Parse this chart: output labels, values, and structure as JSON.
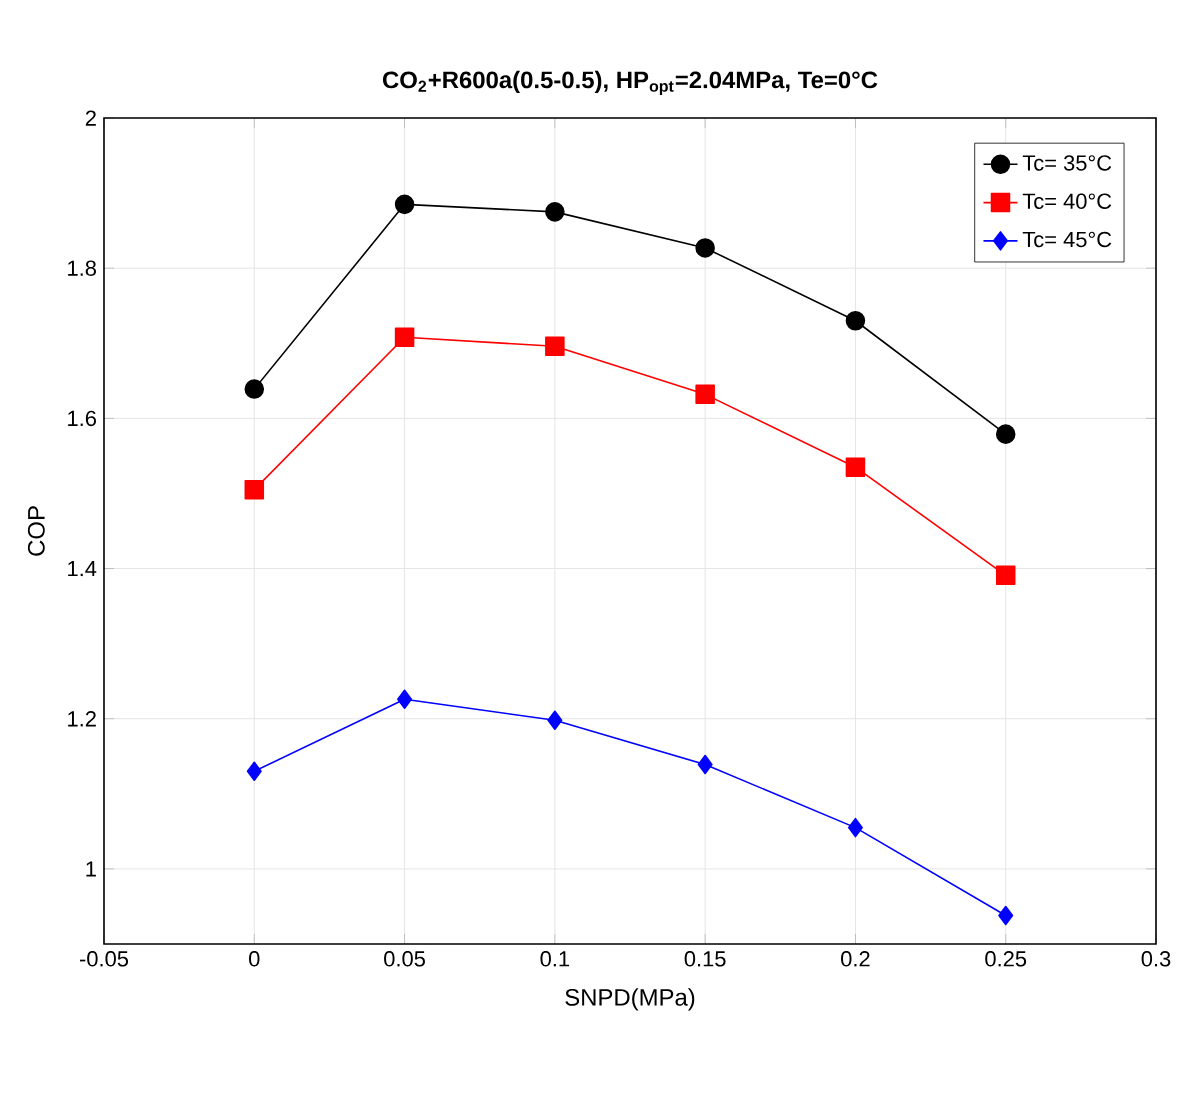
{
  "chart_data": {
    "type": "line",
    "title": "CO$_{2}$+R600a(0.5-0.5), HP$_{opt}$=2.04MPa, Te=0°C",
    "xlabel": "SNPD(MPa)",
    "ylabel": "COP",
    "x": [
      0,
      0.05,
      0.1,
      0.15,
      0.2,
      0.25
    ],
    "series": [
      {
        "name": "Tc= 35°C",
        "color": "#000000",
        "marker": "circle",
        "values": [
          1.639,
          1.885,
          1.875,
          1.827,
          1.73,
          1.579
        ]
      },
      {
        "name": "Tc= 40°C",
        "color": "#ff0000",
        "marker": "square",
        "values": [
          1.505,
          1.708,
          1.696,
          1.632,
          1.535,
          1.391
        ]
      },
      {
        "name": "Tc= 45°C",
        "color": "#0000ff",
        "marker": "diamond",
        "values": [
          1.13,
          1.226,
          1.198,
          1.139,
          1.055,
          0.938
        ]
      }
    ],
    "xlim": [
      -0.05,
      0.3
    ],
    "ylim": [
      0.9,
      2
    ],
    "xticks": [
      -0.05,
      0,
      0.05,
      0.1,
      0.15,
      0.2,
      0.25,
      0.3
    ],
    "yticks": [
      1,
      1.2,
      1.4,
      1.6,
      1.8,
      2
    ],
    "grid": true,
    "legend": "top right",
    "line_style": "solid"
  }
}
